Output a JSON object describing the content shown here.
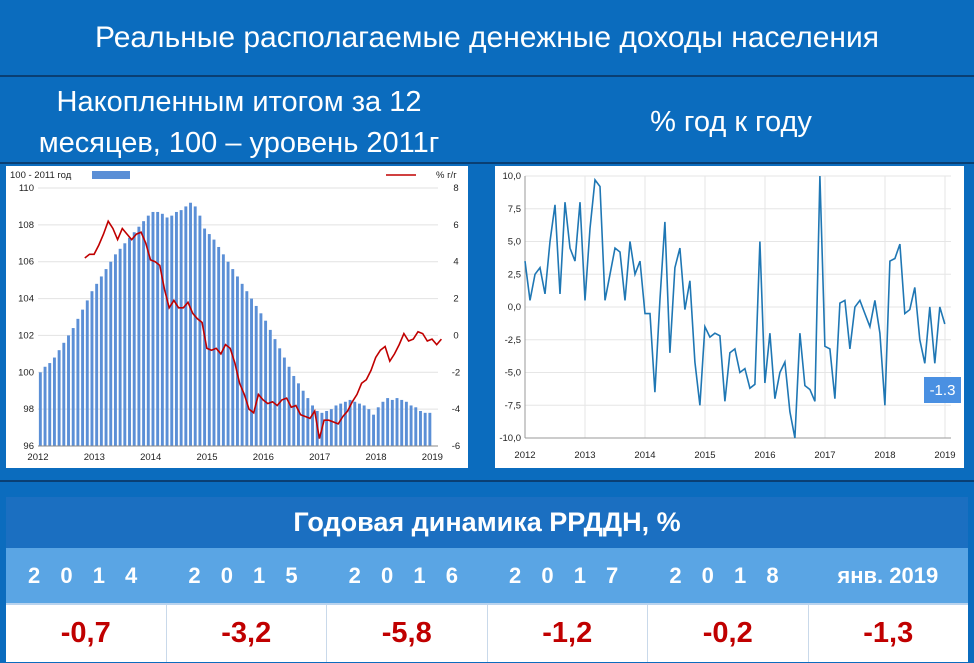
{
  "header": {
    "title": "Реальные располагаемые денежные доходы населения",
    "left_subtitle_line1": "Накопленным итогом за 12",
    "left_subtitle_line2": "месяцев, 100 – уровень 2011г",
    "right_subtitle": "% год к году"
  },
  "colors": {
    "background": "#0b6cbe",
    "bar": "#5b8fd6",
    "red_line": "#c00000",
    "blue_line": "#1f77b4",
    "value_red": "#c00000"
  },
  "chart_data": [
    {
      "type": "bar",
      "legend": {
        "bars": "100 - 2011 год",
        "line": "% г/г"
      },
      "y_left": {
        "ylim": [
          96,
          110
        ],
        "ticks": [
          "96",
          "98",
          "100",
          "102",
          "104",
          "106",
          "108",
          "110"
        ]
      },
      "y_right": {
        "ylim": [
          -6,
          8
        ],
        "ticks": [
          "-6",
          "-4",
          "-2",
          "0",
          "2",
          "4",
          "6",
          "8"
        ]
      },
      "x_ticks": [
        "2012",
        "2013",
        "2014",
        "2015",
        "2016",
        "2017",
        "2018",
        "2019"
      ],
      "x_range": [
        2012,
        2019.1
      ],
      "series": [
        {
          "name": "100 - 2011 год",
          "x_start": 2012.0,
          "step": 0.0833,
          "values": [
            100.0,
            100.3,
            100.5,
            100.8,
            101.2,
            101.6,
            102.0,
            102.4,
            102.9,
            103.4,
            103.9,
            104.4,
            104.8,
            105.2,
            105.6,
            106.0,
            106.4,
            106.7,
            107.0,
            107.3,
            107.6,
            107.9,
            108.2,
            108.5,
            108.7,
            108.7,
            108.6,
            108.4,
            108.5,
            108.7,
            108.8,
            109.0,
            109.2,
            109.0,
            108.5,
            107.8,
            107.5,
            107.2,
            106.8,
            106.4,
            106.0,
            105.6,
            105.2,
            104.8,
            104.4,
            104.0,
            103.6,
            103.2,
            102.8,
            102.3,
            101.8,
            101.3,
            100.8,
            100.3,
            99.8,
            99.4,
            99.0,
            98.6,
            98.2,
            97.9,
            97.8,
            97.9,
            98.0,
            98.2,
            98.3,
            98.4,
            98.5,
            98.4,
            98.3,
            98.2,
            98.0,
            97.7,
            98.1,
            98.4,
            98.6,
            98.5,
            98.6,
            98.5,
            98.4,
            98.2,
            98.1,
            97.9,
            97.8,
            97.8
          ]
        },
        {
          "name": "% г/г",
          "x_start": 2012.83,
          "step": 0.0833,
          "values": [
            4.2,
            4.4,
            4.4,
            4.9,
            5.5,
            6.2,
            5.8,
            5.2,
            5.8,
            5.5,
            5.2,
            5.5,
            5.6,
            5.0,
            4.1,
            4.0,
            3.8,
            2.5,
            1.5,
            1.9,
            1.5,
            1.5,
            1.8,
            1.2,
            0.9,
            0.7,
            -0.7,
            -0.8,
            -0.7,
            -1.0,
            -0.5,
            -0.7,
            -1.5,
            -2.6,
            -3.2,
            -4.0,
            -4.2,
            -3.2,
            -3.5,
            -3.7,
            -3.6,
            -3.8,
            -3.5,
            -3.4,
            -3.9,
            -3.8,
            -4.3,
            -4.4,
            -4.5,
            -4.1,
            -5.6,
            -4.6,
            -4.6,
            -4.7,
            -4.8,
            -4.4,
            -4.1,
            -3.6,
            -3.2,
            -2.6,
            -2.4,
            -1.9,
            -1.2,
            -0.8,
            -0.6,
            -1.4,
            -1.0,
            -0.5,
            0.1,
            -0.3,
            -0.2,
            0.2,
            0.1,
            -0.3,
            -0.2,
            -0.5,
            -0.2
          ]
        }
      ]
    },
    {
      "type": "line",
      "ylim": [
        -10,
        10
      ],
      "y_ticks": [
        "10,0",
        "7,5",
        "5,0",
        "2,5",
        "0,0",
        "-2,5",
        "-5,0",
        "-7,5",
        "-10,0"
      ],
      "x_ticks": [
        "2012",
        "2013",
        "2014",
        "2015",
        "2016",
        "2017",
        "2018",
        "2019"
      ],
      "x_range": [
        2012,
        2019.1
      ],
      "annotation": "-1.3",
      "series": [
        {
          "name": "% год к году",
          "x_start": 2012.0,
          "step": 0.0833,
          "values": [
            3.5,
            0.5,
            2.5,
            3.0,
            1.0,
            5.0,
            7.8,
            1.0,
            8.0,
            4.5,
            3.5,
            8.0,
            0.5,
            6.0,
            9.7,
            9.2,
            0.5,
            2.5,
            4.5,
            4.2,
            0.5,
            5.0,
            2.5,
            3.5,
            -0.5,
            -0.5,
            -6.5,
            0.5,
            6.5,
            -3.5,
            3.0,
            4.5,
            -0.2,
            2.0,
            -4.2,
            -7.5,
            -1.5,
            -2.3,
            -2.0,
            -2.2,
            -7.2,
            -3.5,
            -3.2,
            -5.0,
            -4.7,
            -6.2,
            -5.9,
            5.0,
            -5.8,
            -2.0,
            -7.0,
            -5.0,
            -4.2,
            -8.0,
            -10.0,
            -2.0,
            -6.0,
            -6.3,
            -7.2,
            10.0,
            -3.0,
            -3.2,
            -7.0,
            0.3,
            0.5,
            -3.2,
            0.0,
            0.5,
            -0.5,
            -1.5,
            0.5,
            -2.0,
            -7.5,
            3.5,
            3.7,
            4.8,
            -0.5,
            -0.2,
            1.5,
            -2.5,
            -4.3,
            0.0,
            -4.3,
            0.0,
            -1.3
          ]
        }
      ]
    }
  ],
  "table": {
    "title": "Годовая динамика РРДДН, %",
    "years": [
      "2 0 1 4",
      "2 0 1 5",
      "2 0 1 6",
      "2 0 1 7",
      "2 0 1 8",
      "янв. 2019"
    ],
    "values": [
      "-0,7",
      "-3,2",
      "-5,8",
      "-1,2",
      "-0,2",
      "-1,3"
    ]
  }
}
